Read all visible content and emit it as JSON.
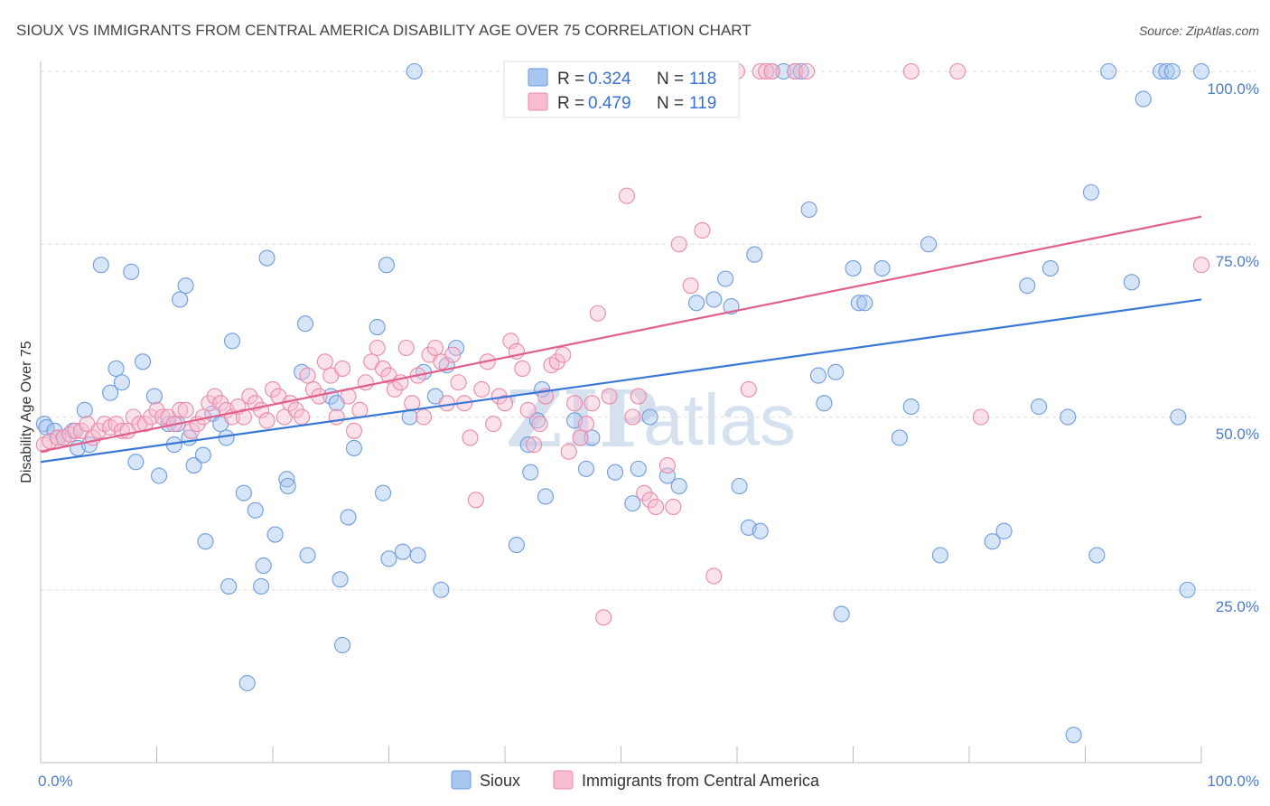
{
  "title": "SIOUX VS IMMIGRANTS FROM CENTRAL AMERICA DISABILITY AGE OVER 75 CORRELATION CHART",
  "source": "Source: ZipAtlas.com",
  "watermark": {
    "part1": "ZIP",
    "part2": "atlas"
  },
  "legend": {
    "r_label": "R = ",
    "n_label": "N = ",
    "rows": [
      {
        "r": "0.324",
        "n": "118",
        "color": "#a7c6f0",
        "stroke": "#6f9be0"
      },
      {
        "r": "0.479",
        "n": "119",
        "color": "#f7bcd0",
        "stroke": "#e98aa8"
      }
    ]
  },
  "chart_data": {
    "type": "scatter",
    "title": "SIOUX VS IMMIGRANTS FROM CENTRAL AMERICA DISABILITY AGE OVER 75 CORRELATION CHART",
    "ylabel": "Disability Age Over 75",
    "xlabel": "",
    "xlim": [
      0,
      100
    ],
    "ylim": [
      0,
      100
    ],
    "x_ticks": [
      "0.0%",
      "100.0%"
    ],
    "y_ticks": [
      "25.0%",
      "50.0%",
      "75.0%",
      "100.0%"
    ],
    "grid": true,
    "legend_position": "top-center",
    "series": [
      {
        "name": "Sioux",
        "color": "#a7c6f0",
        "stroke": "#6f9be0",
        "trend": {
          "x": [
            0,
            100
          ],
          "y": [
            43.5,
            67
          ],
          "color": "#3a78d8"
        },
        "points": [
          [
            0.3,
            49
          ],
          [
            0.5,
            48.5
          ],
          [
            1.2,
            48
          ],
          [
            1.5,
            47
          ],
          [
            2,
            47
          ],
          [
            2.8,
            48
          ],
          [
            3.2,
            45.5
          ],
          [
            3.8,
            51
          ],
          [
            4.2,
            46
          ],
          [
            5.2,
            72
          ],
          [
            6,
            53.5
          ],
          [
            6.5,
            57
          ],
          [
            7,
            55
          ],
          [
            7.8,
            71
          ],
          [
            8.2,
            43.5
          ],
          [
            8.8,
            58
          ],
          [
            9.8,
            53
          ],
          [
            10.2,
            41.5
          ],
          [
            11,
            49
          ],
          [
            11.5,
            46
          ],
          [
            11.8,
            49
          ],
          [
            12,
            67
          ],
          [
            12.5,
            69
          ],
          [
            12.8,
            47
          ],
          [
            13.2,
            43
          ],
          [
            14,
            44.5
          ],
          [
            14.2,
            32
          ],
          [
            14.8,
            50.5
          ],
          [
            15.5,
            49
          ],
          [
            16,
            47
          ],
          [
            16.2,
            25.5
          ],
          [
            16.5,
            61
          ],
          [
            17.5,
            39
          ],
          [
            17.8,
            11.5
          ],
          [
            18.5,
            36.5
          ],
          [
            19,
            25.5
          ],
          [
            19.2,
            28.5
          ],
          [
            19.5,
            73
          ],
          [
            20.2,
            33
          ],
          [
            21.2,
            41
          ],
          [
            21.3,
            40
          ],
          [
            22.5,
            56.5
          ],
          [
            22.8,
            63.5
          ],
          [
            23,
            30
          ],
          [
            25,
            53
          ],
          [
            25.5,
            52
          ],
          [
            25.8,
            26.5
          ],
          [
            26,
            17
          ],
          [
            26.5,
            35.5
          ],
          [
            27,
            45.5
          ],
          [
            29,
            63
          ],
          [
            29.5,
            39
          ],
          [
            29.8,
            72
          ],
          [
            30,
            29.5
          ],
          [
            31.2,
            30.5
          ],
          [
            31.8,
            50
          ],
          [
            32.2,
            100
          ],
          [
            32.5,
            30
          ],
          [
            33,
            56.5
          ],
          [
            34,
            53
          ],
          [
            34.5,
            25
          ],
          [
            35,
            57.5
          ],
          [
            35.8,
            60
          ],
          [
            41,
            31.5
          ],
          [
            42,
            46
          ],
          [
            42.2,
            42
          ],
          [
            42.8,
            49.5
          ],
          [
            43.2,
            54
          ],
          [
            43.5,
            38.5
          ],
          [
            46,
            49.5
          ],
          [
            47,
            42.5
          ],
          [
            47.5,
            47
          ],
          [
            49.5,
            42
          ],
          [
            51,
            37.5
          ],
          [
            51.5,
            42.5
          ],
          [
            52.5,
            50
          ],
          [
            54,
            41.5
          ],
          [
            55,
            40
          ],
          [
            56.5,
            66.5
          ],
          [
            58,
            67
          ],
          [
            59,
            70
          ],
          [
            59.5,
            66
          ],
          [
            60.2,
            40
          ],
          [
            61,
            34
          ],
          [
            61.5,
            73.5
          ],
          [
            62,
            33.5
          ],
          [
            63,
            100
          ],
          [
            64,
            100
          ],
          [
            65,
            100
          ],
          [
            65.5,
            100
          ],
          [
            66.2,
            80
          ],
          [
            67,
            56
          ],
          [
            67.5,
            52
          ],
          [
            68.5,
            56.5
          ],
          [
            69,
            21.5
          ],
          [
            70,
            71.5
          ],
          [
            70.5,
            66.5
          ],
          [
            71,
            66.5
          ],
          [
            72.5,
            71.5
          ],
          [
            74,
            47
          ],
          [
            75,
            51.5
          ],
          [
            76.5,
            75
          ],
          [
            77.5,
            30
          ],
          [
            82,
            32
          ],
          [
            83,
            33.5
          ],
          [
            85,
            69
          ],
          [
            86,
            51.5
          ],
          [
            87,
            71.5
          ],
          [
            88.5,
            50
          ],
          [
            89,
            4
          ],
          [
            90.5,
            82.5
          ],
          [
            91,
            30
          ],
          [
            92,
            100
          ],
          [
            94,
            69.5
          ],
          [
            95,
            96
          ],
          [
            96.5,
            100
          ],
          [
            97,
            100
          ],
          [
            97.5,
            100
          ],
          [
            98,
            50
          ],
          [
            98.8,
            25
          ],
          [
            100,
            100
          ]
        ]
      },
      {
        "name": "Immigrants from Central America",
        "color": "#f7bcd0",
        "stroke": "#e98aa8",
        "trend": {
          "x": [
            0,
            100
          ],
          "y": [
            45,
            79
          ],
          "color": "#e25f8b"
        },
        "points": [
          [
            0.3,
            46
          ],
          [
            0.8,
            46.5
          ],
          [
            1.5,
            47
          ],
          [
            2,
            47
          ],
          [
            2.5,
            47.5
          ],
          [
            3,
            48
          ],
          [
            3.5,
            48
          ],
          [
            4,
            49
          ],
          [
            4.5,
            47
          ],
          [
            5,
            48
          ],
          [
            5.5,
            49
          ],
          [
            6,
            48.5
          ],
          [
            6.5,
            49
          ],
          [
            7,
            48
          ],
          [
            7.5,
            48
          ],
          [
            8,
            50
          ],
          [
            8.5,
            49
          ],
          [
            9,
            49
          ],
          [
            9.5,
            50
          ],
          [
            10,
            51
          ],
          [
            10.5,
            50
          ],
          [
            11,
            50
          ],
          [
            11.5,
            49
          ],
          [
            12,
            51
          ],
          [
            12.5,
            51
          ],
          [
            13,
            48
          ],
          [
            13.5,
            49
          ],
          [
            14,
            50
          ],
          [
            14.5,
            52
          ],
          [
            15,
            53
          ],
          [
            15.5,
            52
          ],
          [
            16,
            51
          ],
          [
            16.5,
            50
          ],
          [
            17,
            51.5
          ],
          [
            17.5,
            50
          ],
          [
            18,
            53
          ],
          [
            18.5,
            52
          ],
          [
            19,
            51
          ],
          [
            19.5,
            49.5
          ],
          [
            20,
            54
          ],
          [
            20.5,
            53
          ],
          [
            21,
            50
          ],
          [
            21.5,
            52
          ],
          [
            22,
            51
          ],
          [
            22.5,
            50
          ],
          [
            23,
            56
          ],
          [
            23.5,
            54
          ],
          [
            24,
            53
          ],
          [
            24.5,
            58
          ],
          [
            25,
            56
          ],
          [
            25.5,
            50
          ],
          [
            26,
            57
          ],
          [
            26.5,
            53
          ],
          [
            27,
            48
          ],
          [
            27.5,
            51
          ],
          [
            28,
            55
          ],
          [
            28.5,
            58
          ],
          [
            29,
            60
          ],
          [
            29.5,
            57
          ],
          [
            30,
            56
          ],
          [
            30.5,
            54
          ],
          [
            31,
            55
          ],
          [
            31.5,
            60
          ],
          [
            32,
            52
          ],
          [
            32.5,
            56
          ],
          [
            33,
            50
          ],
          [
            33.5,
            59
          ],
          [
            34,
            60
          ],
          [
            34.5,
            58
          ],
          [
            35,
            52
          ],
          [
            35.5,
            59
          ],
          [
            36,
            55
          ],
          [
            36.5,
            52
          ],
          [
            37,
            47
          ],
          [
            37.5,
            38
          ],
          [
            38,
            54
          ],
          [
            38.5,
            58
          ],
          [
            39,
            49
          ],
          [
            39.5,
            53
          ],
          [
            40,
            52
          ],
          [
            40.5,
            61
          ],
          [
            41,
            59.5
          ],
          [
            41.5,
            57
          ],
          [
            42,
            51
          ],
          [
            42.5,
            46
          ],
          [
            43,
            49
          ],
          [
            43.5,
            53
          ],
          [
            44,
            57.5
          ],
          [
            44.5,
            58
          ],
          [
            45,
            59
          ],
          [
            45.5,
            45
          ],
          [
            46,
            52
          ],
          [
            46.5,
            47
          ],
          [
            47,
            49
          ],
          [
            47.5,
            52
          ],
          [
            48,
            65
          ],
          [
            48.5,
            21
          ],
          [
            49,
            53
          ],
          [
            50,
            100
          ],
          [
            50.5,
            82
          ],
          [
            51,
            50
          ],
          [
            51.5,
            53
          ],
          [
            52,
            39
          ],
          [
            52.5,
            38
          ],
          [
            53,
            37
          ],
          [
            54,
            43
          ],
          [
            54.5,
            37
          ],
          [
            55,
            75
          ],
          [
            56,
            69
          ],
          [
            57,
            77
          ],
          [
            58,
            27
          ],
          [
            58.5,
            100
          ],
          [
            60,
            100
          ],
          [
            61,
            54
          ],
          [
            62,
            100
          ],
          [
            62.5,
            100
          ],
          [
            63,
            100
          ],
          [
            65,
            100
          ],
          [
            66,
            100
          ],
          [
            75,
            100
          ],
          [
            79,
            100
          ],
          [
            81,
            50
          ],
          [
            100,
            72
          ]
        ]
      }
    ]
  }
}
